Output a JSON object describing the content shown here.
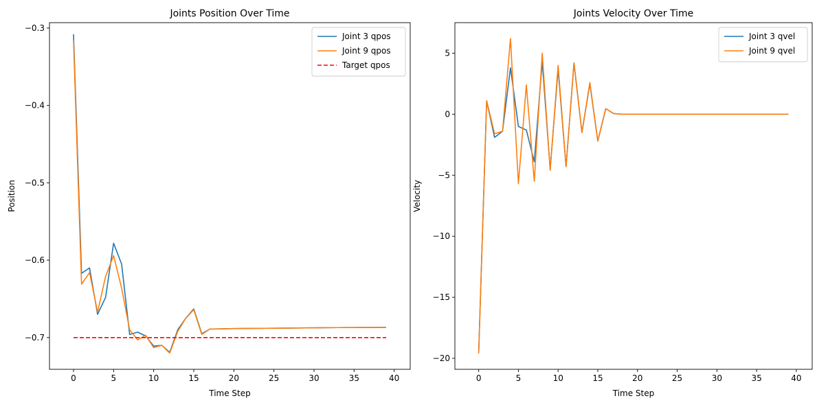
{
  "chart_data": [
    {
      "type": "line",
      "title": "Joints Position Over Time",
      "xlabel": "Time Step",
      "ylabel": "Position",
      "xlim": [
        -3.0,
        42.0
      ],
      "ylim": [
        -0.741,
        -0.293
      ],
      "xticks": [
        0,
        5,
        10,
        15,
        20,
        25,
        30,
        35,
        40
      ],
      "yticks": [
        -0.7,
        -0.6,
        -0.5,
        -0.4,
        -0.3
      ],
      "ytick_labels": [
        "−0.7",
        "−0.6",
        "−0.5",
        "−0.4",
        "−0.3"
      ],
      "grid": false,
      "legend": "top-right",
      "series": [
        {
          "name": "Joint 3 qpos",
          "color": "#1f77b4",
          "dash": "solid",
          "x": [
            0,
            1,
            2,
            3,
            4,
            5,
            6,
            7,
            8,
            9,
            10,
            11,
            12,
            13,
            14,
            15,
            16,
            17,
            18,
            19,
            20,
            21,
            22,
            23,
            24,
            25,
            26,
            27,
            28,
            29,
            30,
            31,
            32,
            33,
            34,
            35,
            36,
            37,
            38,
            39
          ],
          "values": [
            -0.308,
            -0.617,
            -0.61,
            -0.67,
            -0.648,
            -0.578,
            -0.605,
            -0.696,
            -0.693,
            -0.698,
            -0.711,
            -0.71,
            -0.719,
            -0.69,
            -0.675,
            -0.663,
            -0.695,
            -0.689,
            -0.6888,
            -0.6886,
            -0.6884,
            -0.6883,
            -0.6882,
            -0.6881,
            -0.688,
            -0.6879,
            -0.6878,
            -0.6877,
            -0.6876,
            -0.6875,
            -0.6874,
            -0.6873,
            -0.6872,
            -0.6871,
            -0.687,
            -0.687,
            -0.6869,
            -0.6869,
            -0.6868,
            -0.6868
          ]
        },
        {
          "name": "Joint 9 qpos",
          "color": "#ff7f0e",
          "dash": "solid",
          "x": [
            0,
            1,
            2,
            3,
            4,
            5,
            6,
            7,
            8,
            9,
            10,
            11,
            12,
            13,
            14,
            15,
            16,
            17,
            18,
            19,
            20,
            21,
            22,
            23,
            24,
            25,
            26,
            27,
            28,
            29,
            30,
            31,
            32,
            33,
            34,
            35,
            36,
            37,
            38,
            39
          ],
          "values": [
            -0.316,
            -0.631,
            -0.616,
            -0.667,
            -0.621,
            -0.594,
            -0.636,
            -0.69,
            -0.703,
            -0.697,
            -0.713,
            -0.71,
            -0.72,
            -0.692,
            -0.675,
            -0.664,
            -0.696,
            -0.689,
            -0.6888,
            -0.6886,
            -0.6884,
            -0.6883,
            -0.6882,
            -0.6881,
            -0.688,
            -0.6879,
            -0.6878,
            -0.6877,
            -0.6876,
            -0.6875,
            -0.6874,
            -0.6873,
            -0.6872,
            -0.6871,
            -0.687,
            -0.687,
            -0.6869,
            -0.6869,
            -0.6868,
            -0.6868
          ]
        },
        {
          "name": "Target qpos",
          "color": "#ff0000",
          "dash": "dashed",
          "x": [
            0,
            39
          ],
          "values": [
            -0.7,
            -0.7
          ]
        }
      ]
    },
    {
      "type": "line",
      "title": "Joints Velocity Over Time",
      "xlabel": "Time Step",
      "ylabel": "Velocity",
      "xlim": [
        -3.0,
        42.0
      ],
      "ylim": [
        -20.9,
        7.5
      ],
      "xticks": [
        0,
        5,
        10,
        15,
        20,
        25,
        30,
        35,
        40
      ],
      "yticks": [
        -20,
        -15,
        -10,
        -5,
        0,
        5
      ],
      "ytick_labels": [
        "−20",
        "−15",
        "−10",
        "−5",
        "0",
        "5"
      ],
      "grid": false,
      "legend": "top-right",
      "series": [
        {
          "name": "Joint 3 qvel",
          "color": "#1f77b4",
          "dash": "solid",
          "x": [
            0,
            1,
            2,
            3,
            4,
            5,
            6,
            7,
            8,
            9,
            10,
            11,
            12,
            13,
            14,
            15,
            16,
            17,
            18,
            19,
            20,
            21,
            22,
            23,
            24,
            25,
            26,
            27,
            28,
            29,
            30,
            31,
            32,
            33,
            34,
            35,
            36,
            37,
            38,
            39
          ],
          "values": [
            -19.5,
            1.1,
            -1.9,
            -1.4,
            3.8,
            -1.0,
            -1.3,
            -3.9,
            4.3,
            -4.5,
            3.7,
            -4.3,
            4.2,
            -1.5,
            2.5,
            -2.2,
            0.45,
            0.05,
            0,
            0,
            0,
            0,
            0,
            0,
            0,
            0,
            0,
            0,
            0,
            0,
            0,
            0,
            0,
            0,
            0,
            0,
            0,
            0,
            0,
            0
          ]
        },
        {
          "name": "Joint 9 qvel",
          "color": "#ff7f0e",
          "dash": "solid",
          "x": [
            0,
            1,
            2,
            3,
            4,
            5,
            6,
            7,
            8,
            9,
            10,
            11,
            12,
            13,
            14,
            15,
            16,
            17,
            18,
            19,
            20,
            21,
            22,
            23,
            24,
            25,
            26,
            27,
            28,
            29,
            30,
            31,
            32,
            33,
            34,
            35,
            36,
            37,
            38,
            39
          ],
          "values": [
            -19.6,
            1.1,
            -1.6,
            -1.4,
            6.2,
            -5.7,
            2.4,
            -5.5,
            5.0,
            -4.6,
            4.0,
            -4.3,
            4.2,
            -1.5,
            2.6,
            -2.2,
            0.45,
            0.05,
            0,
            0,
            0,
            0,
            0,
            0,
            0,
            0,
            0,
            0,
            0,
            0,
            0,
            0,
            0,
            0,
            0,
            0,
            0,
            0,
            0,
            0
          ]
        }
      ]
    }
  ]
}
